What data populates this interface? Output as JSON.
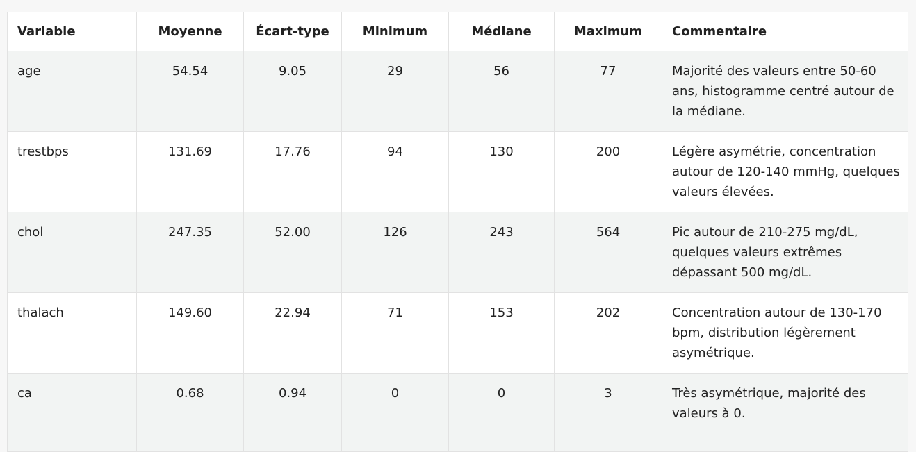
{
  "table": {
    "headers": [
      "Variable",
      "Moyenne",
      "Écart-type",
      "Minimum",
      "Médiane",
      "Maximum",
      "Commentaire"
    ],
    "rows": [
      {
        "variable": "age",
        "moyenne": "54.54",
        "ecart_type": "9.05",
        "minimum": "29",
        "mediane": "56",
        "maximum": "77",
        "commentaire": "Majorité des valeurs entre 50-60 ans, histogramme centré autour de la médiane."
      },
      {
        "variable": "trestbps",
        "moyenne": "131.69",
        "ecart_type": "17.76",
        "minimum": "94",
        "mediane": "130",
        "maximum": "200",
        "commentaire": "Légère asymétrie, concentration autour de 120-140 mmHg, quelques valeurs élevées."
      },
      {
        "variable": "chol",
        "moyenne": "247.35",
        "ecart_type": "52.00",
        "minimum": "126",
        "mediane": "243",
        "maximum": "564",
        "commentaire": "Pic autour de 210-275 mg/dL, quelques valeurs extrêmes dépassant 500 mg/dL."
      },
      {
        "variable": "thalach",
        "moyenne": "149.60",
        "ecart_type": "22.94",
        "minimum": "71",
        "mediane": "153",
        "maximum": "202",
        "commentaire": "Concentration autour de 130-170 bpm, distribution légèrement asymétrique."
      },
      {
        "variable": "ca",
        "moyenne": "0.68",
        "ecart_type": "0.94",
        "minimum": "0",
        "mediane": "0",
        "maximum": "3",
        "commentaire": "Très asymétrique, majorité des valeurs à 0."
      }
    ]
  },
  "colors": {
    "shaded_row": "#f2f4f3",
    "border": "#e2e2e2",
    "page_background": "#f7f7f7"
  }
}
